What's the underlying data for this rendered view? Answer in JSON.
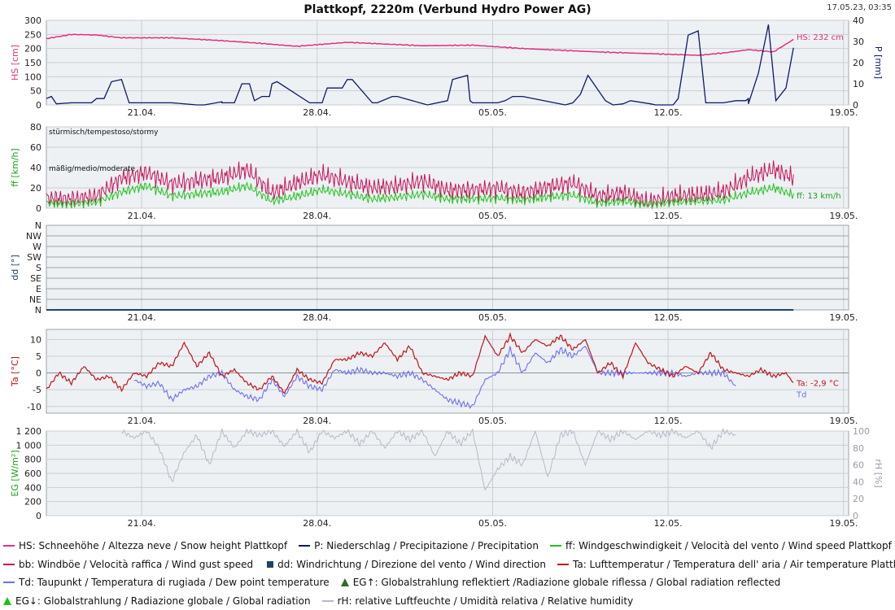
{
  "title": "Plattkopf, 2220m (Verbund Hydro Power AG)",
  "timestamp": "17.05.23, 03:35",
  "colors": {
    "hs": "#e0307f",
    "p": "#0c1a6b",
    "ff": "#22c422",
    "bb": "#c8145a",
    "dd": "#1d4466",
    "ta": "#c0141a",
    "td": "#6f6ff0",
    "eg": "#19c419",
    "rh": "#b8b8c8",
    "axis_green": "#17a317"
  },
  "chart_data": [
    {
      "type": "line",
      "id": "panel1",
      "x_ticks": [
        "21.04.",
        "28.04.",
        "05.05.",
        "12.05.",
        "19.05."
      ],
      "ylabel": "HS [cm]",
      "ylabel_right": "P [mm]",
      "ylim": [
        0,
        300
      ],
      "yticks": [
        "0",
        "50",
        "100",
        "150",
        "200",
        "250",
        "300"
      ],
      "ylim_right": [
        0,
        40
      ],
      "yticks_right": [
        "0",
        "10",
        "20",
        "30",
        "40"
      ],
      "annotation_hs": "HS: 232 cm",
      "series": [
        {
          "key": "hs",
          "days": [
            0,
            1,
            2,
            3,
            5,
            7,
            8,
            10,
            12,
            13,
            15,
            17,
            19,
            20,
            22,
            24,
            26,
            27,
            28,
            29,
            29.8
          ],
          "values": [
            235,
            250,
            248,
            238,
            238,
            228,
            222,
            208,
            222,
            218,
            210,
            212,
            200,
            196,
            188,
            182,
            176,
            184,
            196,
            188,
            232
          ]
        },
        {
          "key": "p",
          "days": [
            0,
            0.2,
            0.4,
            1,
            1.8,
            2,
            2.3,
            2.6,
            3,
            3.3,
            5,
            6,
            6.3,
            7,
            7,
            7.5,
            7.8,
            8.1,
            8.3,
            8.6,
            8.9,
            9,
            9.2,
            10.5,
            11,
            11.2,
            11.8,
            12,
            12.2,
            13,
            13.2,
            13.8,
            14,
            15.2,
            16,
            16.2,
            16.8,
            16.9,
            17,
            17.4,
            18,
            18.3,
            18.6,
            19,
            20.7,
            21,
            21.3,
            21.6,
            22.3,
            22.6,
            23,
            23.3,
            24.1,
            24.3,
            25,
            25.2,
            25.6,
            26,
            26.3,
            27,
            27.5,
            27.9,
            28,
            28,
            28.4,
            28.8,
            29.1,
            29.5,
            29.8
          ],
          "values": [
            3,
            4,
            0.5,
            1,
            1,
            3,
            3,
            11,
            12,
            1,
            1,
            0,
            0,
            1.5,
            1,
            1,
            10,
            10,
            2,
            4,
            4,
            10,
            11,
            1,
            1,
            8,
            8,
            12,
            12,
            1,
            1,
            4,
            4,
            0,
            2,
            12,
            14,
            2,
            1,
            1,
            1,
            2,
            4,
            4,
            0,
            1,
            5,
            14,
            2,
            0,
            0.5,
            2,
            0.5,
            0,
            0,
            3,
            33,
            35,
            1,
            1,
            2,
            2,
            3,
            0.5,
            15,
            38,
            2,
            8,
            27
          ]
        }
      ]
    },
    {
      "type": "line",
      "id": "panel2",
      "x_ticks": [
        "21.04.",
        "28.04.",
        "05.05.",
        "12.05.",
        "19.05."
      ],
      "ylabel": "ff [km/h]",
      "ylim": [
        0,
        80
      ],
      "yticks": [
        "0",
        "20",
        "40",
        "60",
        "80"
      ],
      "label_stormy": "stürmisch/tempestoso/stormy",
      "label_moderate": "mäßig/medio/moderate",
      "annotation_ff": "ff: 13 km/h",
      "series": [
        {
          "key": "bb",
          "days": [
            0,
            1,
            2,
            3,
            4,
            5,
            6,
            7,
            8,
            9,
            10,
            11,
            12,
            13,
            14,
            15,
            16,
            17,
            18,
            19,
            20,
            21,
            22,
            23,
            24,
            25,
            26,
            27,
            28,
            29,
            29.8
          ],
          "values": [
            10,
            9,
            12,
            30,
            35,
            24,
            27,
            30,
            38,
            15,
            25,
            33,
            26,
            20,
            22,
            27,
            18,
            18,
            20,
            15,
            21,
            25,
            12,
            15,
            6,
            12,
            13,
            16,
            30,
            38,
            30
          ]
        },
        {
          "key": "ff",
          "days": [
            0,
            1,
            2,
            3,
            4,
            5,
            6,
            7,
            8,
            9,
            10,
            11,
            12,
            13,
            14,
            15,
            16,
            17,
            18,
            19,
            20,
            21,
            22,
            23,
            24,
            25,
            26,
            27,
            28,
            29,
            29.8
          ],
          "values": [
            5,
            4,
            6,
            16,
            22,
            12,
            14,
            16,
            22,
            7,
            12,
            18,
            14,
            9,
            11,
            14,
            9,
            9,
            10,
            8,
            11,
            13,
            5,
            7,
            3,
            6,
            7,
            8,
            15,
            20,
            13
          ]
        }
      ]
    },
    {
      "type": "line",
      "id": "panel3",
      "x_ticks": [
        "21.04.",
        "28.04.",
        "05.05.",
        "12.05.",
        "19.05."
      ],
      "ylabel": "dd [°]",
      "direction_labels": [
        "N",
        "NW",
        "W",
        "SW",
        "S",
        "SE",
        "E",
        "NE",
        "N"
      ],
      "series": [
        {
          "key": "dd",
          "days": [
            0,
            29.8
          ],
          "values": [
            0,
            0
          ]
        }
      ]
    },
    {
      "type": "line",
      "id": "panel4",
      "x_ticks": [
        "21.04.",
        "28.04.",
        "05.05.",
        "12.05.",
        "19.05."
      ],
      "ylabel": "Ta [°C]",
      "ylim": [
        -12,
        13
      ],
      "yticks": [
        "-10",
        "-5",
        "0",
        "5",
        "10"
      ],
      "annotation_ta": "Ta: -2,9 °C",
      "annotation_td": "Td",
      "series": [
        {
          "key": "ta",
          "days": [
            0,
            0.5,
            1,
            1.5,
            2,
            2.5,
            3,
            3.5,
            4,
            4.5,
            5,
            5.5,
            6,
            6.5,
            7,
            7.5,
            8,
            8.5,
            9,
            9.5,
            10,
            10.5,
            11,
            11.5,
            12,
            12.5,
            13,
            13.5,
            14,
            14.5,
            15,
            15.5,
            16,
            16.5,
            17,
            17.5,
            18,
            18.5,
            19,
            19.5,
            20,
            20.5,
            21,
            21.5,
            22,
            22.5,
            23,
            23.5,
            24,
            24.5,
            25,
            25.5,
            26,
            26.5,
            27,
            27.5,
            28,
            28.5,
            29,
            29.5,
            29.8
          ],
          "values": [
            -5,
            0,
            -3,
            2,
            -2,
            -1,
            -5,
            0,
            -1,
            3,
            2,
            9,
            2,
            6,
            -1,
            1,
            -3,
            -5,
            -1,
            -6,
            1,
            -2,
            -3,
            4,
            4,
            6,
            5,
            9,
            4,
            8,
            0,
            -1,
            -2,
            0,
            -1,
            11,
            5,
            11,
            6,
            10,
            8,
            11,
            7,
            10,
            0,
            3,
            -1,
            9,
            3,
            1,
            -1,
            2,
            0,
            6,
            1,
            0,
            -1,
            1,
            -1,
            0,
            -3
          ]
        },
        {
          "key": "td",
          "days": [
            3.5,
            4,
            4.5,
            5,
            5.5,
            6,
            6.5,
            7,
            7.5,
            8,
            8.5,
            9,
            9.5,
            10,
            10.5,
            11,
            11.5,
            12,
            12.5,
            13,
            13.5,
            14,
            14.5,
            15,
            16,
            17,
            17.5,
            18,
            18.5,
            19,
            19.5,
            20,
            20.5,
            21,
            21.5,
            22,
            22.5,
            23,
            23.5,
            24,
            24.5,
            25,
            25.5,
            26,
            26.5,
            27,
            27.5
          ],
          "values": [
            -2,
            -4,
            -3,
            -8,
            -5,
            -4,
            -1,
            0,
            -5,
            -7,
            -8,
            -2,
            -7,
            -1,
            -4,
            -5,
            1,
            0,
            1,
            0,
            0,
            -1,
            0,
            -2,
            -8,
            -10,
            -2,
            0,
            7,
            0,
            6,
            3,
            7,
            5,
            8,
            0,
            0,
            0,
            0,
            0,
            0,
            0,
            -1,
            0,
            0,
            0,
            -4
          ]
        }
      ]
    },
    {
      "type": "line",
      "id": "panel5",
      "x_ticks": [
        "21.04.",
        "28.04.",
        "05.05.",
        "12.05.",
        "19.05."
      ],
      "ylabel": "EG [W/m²]",
      "ylabel_right": "rH [%]",
      "ylim": [
        0,
        1200
      ],
      "yticks": [
        "0",
        "200",
        "400",
        "600",
        "800",
        "1 000",
        "1 200"
      ],
      "ylim_right": [
        0,
        100
      ],
      "yticks_right": [
        "0",
        "20",
        "40",
        "60",
        "80",
        "100"
      ],
      "series": [
        {
          "key": "rh",
          "days": [
            3,
            3.5,
            4,
            4.5,
            5,
            5.5,
            6,
            6.5,
            7,
            7.5,
            8,
            8.5,
            9,
            9.5,
            10,
            10.5,
            11,
            11.5,
            12,
            12.5,
            13,
            13.5,
            14,
            14.5,
            15,
            15.5,
            16,
            16.5,
            17,
            17.5,
            18,
            18.5,
            19,
            19.5,
            20,
            20.5,
            21,
            21.5,
            22,
            22.5,
            23,
            23.5,
            24,
            24.5,
            25,
            25.5,
            26,
            26.5,
            27,
            27.5
          ],
          "values": [
            100,
            92,
            100,
            80,
            40,
            75,
            95,
            60,
            100,
            80,
            100,
            95,
            100,
            82,
            100,
            75,
            100,
            92,
            100,
            85,
            100,
            80,
            100,
            90,
            100,
            70,
            100,
            85,
            100,
            30,
            55,
            70,
            60,
            100,
            45,
            95,
            100,
            60,
            100,
            90,
            100,
            90,
            100,
            95,
            100,
            92,
            100,
            80,
            100,
            95
          ]
        }
      ]
    }
  ],
  "legend": [
    [
      {
        "key": "hs",
        "shape": "line",
        "label": "HS: Schneehöhe / Altezza neve / Snow height  Plattkopf"
      },
      {
        "key": "p",
        "shape": "line",
        "label": "P: Niederschlag / Precipitazione / Precipitation"
      },
      {
        "key": "ff",
        "shape": "line",
        "label": "ff: Windgeschwindigkeit / Velocità del vento / Wind speed  Plattkopf"
      }
    ],
    [
      {
        "key": "bb",
        "shape": "line",
        "label": "bb: Windböe / Velocità raffica / Wind gust speed"
      },
      {
        "key": "dd",
        "shape": "square",
        "label": "dd: Windrichtung / Direzione del vento / Wind direction"
      },
      {
        "key": "ta",
        "shape": "line",
        "label": "Ta: Lufttemperatur / Temperatura dell' aria / Air temperature  Plattkopf"
      }
    ],
    [
      {
        "key": "td",
        "shape": "line",
        "label": "Td: Taupunkt / Temperatura di rugiada / Dew point temperature"
      },
      {
        "key": "egr",
        "shape": "triangle-dark",
        "label": "EG↑: Globalstrahlung reflektiert /Radiazione globale riflessa / Global radiation reflected"
      }
    ],
    [
      {
        "key": "eg",
        "shape": "triangle",
        "label": "EG↓: Globalstrahlung / Radiazione globale / Global radiation"
      },
      {
        "key": "rh",
        "shape": "line",
        "label": "rH: relative Luftfeuchte / Umidità relativa / Relative humidity"
      }
    ]
  ]
}
